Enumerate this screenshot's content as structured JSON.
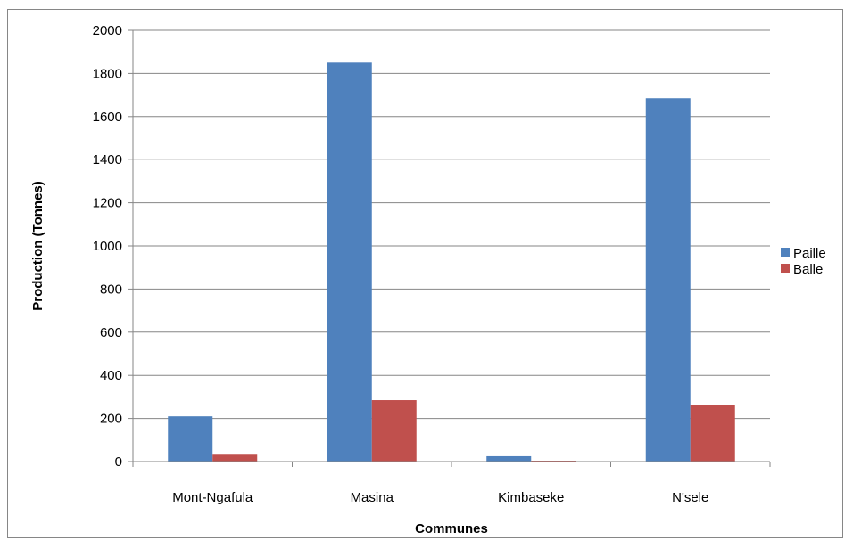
{
  "chart_data": {
    "type": "bar",
    "title": "",
    "xlabel": "Communes",
    "ylabel": "Production (Tonnes)",
    "categories": [
      "Mont-Ngafula",
      "Masina",
      "Kimbaseke",
      "N'sele"
    ],
    "series": [
      {
        "name": "Paille",
        "color": "#4F81BD",
        "values": [
          210,
          1850,
          25,
          1685
        ]
      },
      {
        "name": "Balle",
        "color": "#C0504D",
        "values": [
          32,
          285,
          4,
          262
        ]
      }
    ],
    "ylim": [
      0,
      2000
    ],
    "yticks": [
      "0",
      "200",
      "400",
      "600",
      "800",
      "1000",
      "1200",
      "1400",
      "1600",
      "1800",
      "2000"
    ],
    "grid": true,
    "legend": "right"
  }
}
